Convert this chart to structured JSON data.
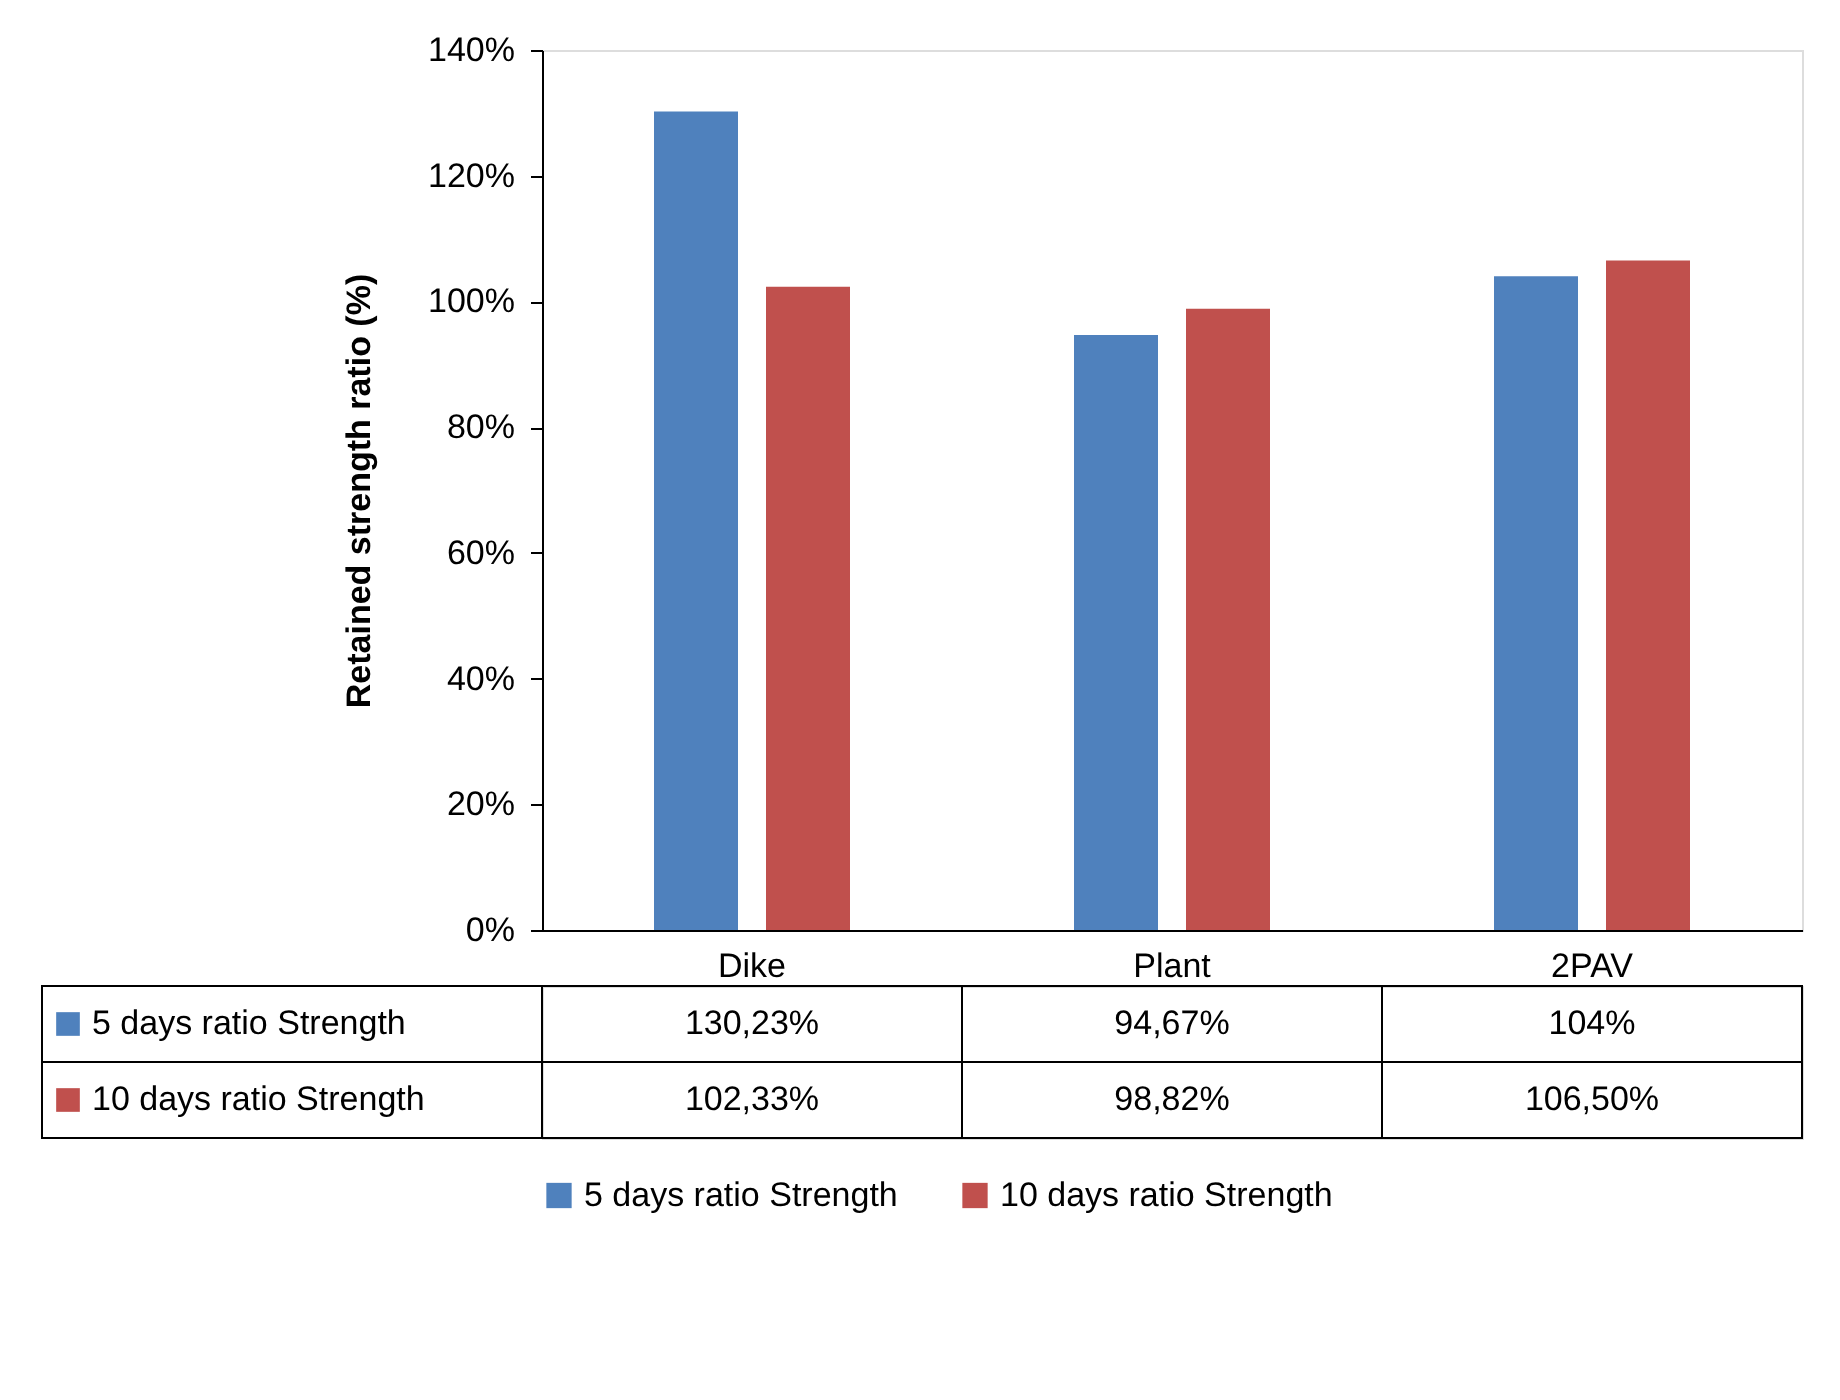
{
  "chart_data": {
    "type": "bar",
    "ylabel": "Retained  strength ratio (%)",
    "categories": [
      "Dike",
      "Plant",
      "2PAV"
    ],
    "series": [
      {
        "name": "5 days ratio Strength",
        "color": "#4f81bd",
        "values": [
          130.23,
          94.67,
          104
        ],
        "value_labels": [
          "130,23%",
          "94,67%",
          "104%"
        ]
      },
      {
        "name": "10 days ratio Strength",
        "color": "#c0504d",
        "values": [
          102.33,
          98.82,
          106.5
        ],
        "value_labels": [
          "102,33%",
          "98,82%",
          "106,50%"
        ]
      }
    ],
    "ylim": [
      0,
      140
    ],
    "yticks": [
      {
        "value": 0,
        "label": "0%"
      },
      {
        "value": 20,
        "label": "20%"
      },
      {
        "value": 40,
        "label": "40%"
      },
      {
        "value": 60,
        "label": "60%"
      },
      {
        "value": 80,
        "label": "80%"
      },
      {
        "value": 100,
        "label": "100%"
      },
      {
        "value": 120,
        "label": "120%"
      },
      {
        "value": 140,
        "label": "140%"
      }
    ],
    "grid": false,
    "legend": "bottom"
  }
}
